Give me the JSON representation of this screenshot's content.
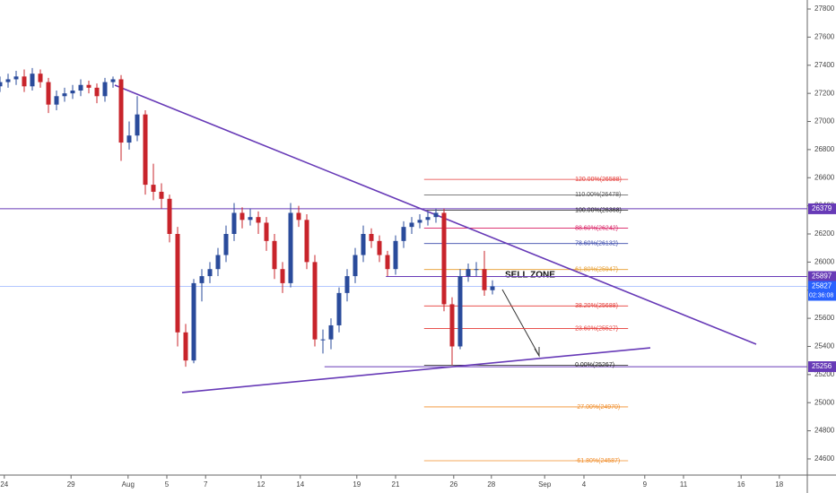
{
  "chart_data": {
    "type": "candlestick",
    "x": [
      0,
      1.5,
      3,
      4.5,
      6,
      7.5,
      9,
      10.5,
      12,
      13.5,
      15,
      16.5,
      18,
      19.5,
      21,
      22.5,
      24,
      25.5,
      27,
      28.5,
      30,
      31.5,
      33,
      34.5,
      36,
      37.5,
      39,
      40.5,
      42,
      43.5,
      45,
      46.5,
      48,
      49.5,
      51,
      52.5,
      54,
      55.5,
      57,
      58.5,
      60,
      61.5,
      63,
      64.5,
      66,
      67.5,
      69,
      70.5,
      72,
      73.5,
      75,
      76.5,
      78,
      79.5,
      81,
      82.5,
      84,
      85.5,
      87,
      88.5,
      90,
      91.5
    ],
    "open": [
      27250,
      27280,
      27300,
      27320,
      27250,
      27340,
      27280,
      27120,
      27180,
      27200,
      27220,
      27260,
      27240,
      27180,
      27280,
      27300,
      26850,
      26900,
      27050,
      26550,
      26500,
      26450,
      26200,
      25500,
      25300,
      25850,
      25900,
      25950,
      26050,
      26200,
      26350,
      26300,
      26320,
      26280,
      26150,
      25950,
      25850,
      26350,
      26300,
      26000,
      25450,
      25450,
      25550,
      25780,
      25900,
      26050,
      26200,
      26150,
      26050,
      25950,
      26150,
      26250,
      26280,
      26300,
      26320,
      26350,
      25700,
      25400,
      25900,
      25950,
      25950,
      25800
    ],
    "high": [
      27320,
      27340,
      27360,
      27370,
      27380,
      27370,
      27310,
      27220,
      27240,
      27260,
      27300,
      27290,
      27270,
      27310,
      27320,
      27330,
      27000,
      27180,
      27080,
      26700,
      26560,
      26480,
      26250,
      25560,
      25880,
      25950,
      26000,
      26100,
      26260,
      26420,
      26390,
      26380,
      26360,
      26320,
      26200,
      26000,
      26420,
      26400,
      26340,
      26050,
      25520,
      25600,
      25820,
      25950,
      26100,
      26260,
      26240,
      26190,
      26080,
      26190,
      26290,
      26320,
      26340,
      26360,
      26379,
      26380,
      25750,
      25950,
      25990,
      26000,
      26080,
      25870
    ],
    "low": [
      27210,
      27240,
      27260,
      27210,
      27220,
      27240,
      27060,
      27080,
      27140,
      27160,
      27180,
      27200,
      27130,
      27140,
      27240,
      26720,
      26800,
      26860,
      26480,
      26440,
      26380,
      26140,
      25400,
      25256,
      25280,
      25720,
      25850,
      25900,
      26000,
      26150,
      26240,
      26260,
      26200,
      26080,
      25880,
      25780,
      25820,
      26250,
      25950,
      25400,
      25350,
      25380,
      25500,
      25720,
      25850,
      26000,
      26100,
      26000,
      25900,
      25910,
      26100,
      26200,
      26240,
      26260,
      26280,
      25650,
      25267,
      25380,
      25860,
      25900,
      25760,
      25770
    ],
    "close": [
      27280,
      27300,
      27320,
      27250,
      27340,
      27280,
      27120,
      27180,
      27200,
      27220,
      27260,
      27240,
      27180,
      27280,
      27300,
      26850,
      26900,
      27050,
      26550,
      26500,
      26450,
      26200,
      25500,
      25300,
      25850,
      25900,
      25950,
      26050,
      26200,
      26350,
      26300,
      26320,
      26280,
      26150,
      25950,
      25850,
      26350,
      26300,
      26000,
      25450,
      25450,
      25550,
      25780,
      25900,
      26050,
      26200,
      26150,
      26050,
      25950,
      26150,
      26250,
      26280,
      26300,
      26320,
      26350,
      25700,
      25400,
      25900,
      25950,
      25950,
      25800,
      25827
    ],
    "up_color": "#2a4b9b",
    "down_color": "#c8242b",
    "xlim": [
      0,
      150
    ],
    "ylim": [
      24485,
      27864
    ],
    "yticks": [
      24600,
      24800,
      25000,
      25200,
      25400,
      25600,
      25800,
      26000,
      26200,
      26400,
      26600,
      26800,
      27000,
      27200,
      27400,
      27600,
      27800
    ],
    "xticks": [
      {
        "value": 0.8,
        "label": "24"
      },
      {
        "value": 13.2,
        "label": "29"
      },
      {
        "value": 23.8,
        "label": "Aug"
      },
      {
        "value": 31,
        "label": "5"
      },
      {
        "value": 38.2,
        "label": "7"
      },
      {
        "value": 48.5,
        "label": "12"
      },
      {
        "value": 55.8,
        "label": "14"
      },
      {
        "value": 66.3,
        "label": "19"
      },
      {
        "value": 73.5,
        "label": "21"
      },
      {
        "value": 84.3,
        "label": "26"
      },
      {
        "value": 91.3,
        "label": "28"
      },
      {
        "value": 101.2,
        "label": "Sep"
      },
      {
        "value": 108.5,
        "label": "4"
      },
      {
        "value": 119.8,
        "label": "9"
      },
      {
        "value": 127,
        "label": "11"
      },
      {
        "value": 137.7,
        "label": "16"
      },
      {
        "value": 144.8,
        "label": "18"
      }
    ],
    "trendlines": [
      {
        "x": [
          21.33,
          140.5
        ],
        "y": [
          27258,
          25416
        ],
        "color": "#673ab7"
      },
      {
        "x": [
          33.83,
          120.83
        ],
        "y": [
          25072,
          25390
        ],
        "color": "#673ab7"
      }
    ],
    "fib": {
      "x": [
        78.8,
        116.7
      ],
      "levels": [
        {
          "label": "120.00%(26588)",
          "value": 26588,
          "color": "#e53935"
        },
        {
          "label": "110.00%(26478)",
          "value": 26478,
          "color": "#555555"
        },
        {
          "label": "100.00%(26368)",
          "value": 26368,
          "color": "#222222"
        },
        {
          "label": "88.60%(26242)",
          "value": 26242,
          "color": "#d81b60"
        },
        {
          "label": "78.60%(26132)",
          "value": 26132,
          "color": "#3949ab"
        },
        {
          "label": "61.80%(25947)",
          "value": 25947,
          "color": "#e69a28"
        },
        {
          "label": "38.20%(25688)",
          "value": 25688,
          "color": "#e53935"
        },
        {
          "label": "23.60%(25527)",
          "value": 25527,
          "color": "#e53935"
        },
        {
          "label": "0.00%(25267)",
          "value": 25267,
          "color": "#222222"
        },
        {
          "label": "-27.00%(24970)",
          "value": 24970,
          "color": "#f08c28"
        },
        {
          "label": "-61.80%(24587)",
          "value": 24587,
          "color": "#f08c28"
        }
      ]
    },
    "horizontal_lines": [
      {
        "value": 26379,
        "from": 0,
        "color": "#673ab7"
      },
      {
        "value": 25897,
        "from": 71.7,
        "color": "#673ab7"
      },
      {
        "value": 25256,
        "from": 60.3,
        "color": "#673ab7"
      }
    ],
    "current_price": {
      "value": 25827,
      "countdown": "02:36:08",
      "color": "#2962ff"
    },
    "annotation": "SELL ZONE"
  }
}
